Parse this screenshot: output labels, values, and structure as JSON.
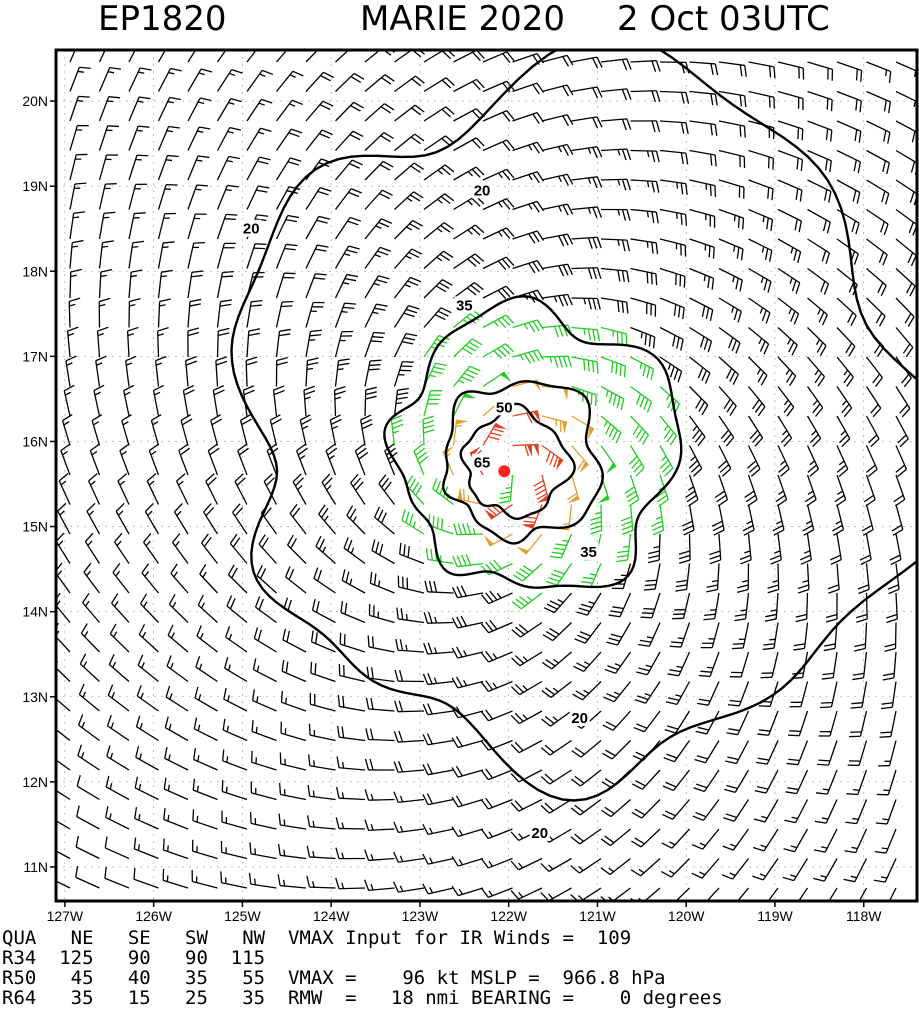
{
  "chart_data": {
    "type": "wind-barb-contour-map",
    "title": {
      "storm_id": "EP1820",
      "storm_name": "MARIE 2020",
      "valid_time": "2 Oct 03UTC"
    },
    "lon_range": [
      -127.1,
      -117.4
    ],
    "lat_range": [
      10.6,
      20.6
    ],
    "x_ticks": [
      {
        "value": -127,
        "label": "127W"
      },
      {
        "value": -126,
        "label": "126W"
      },
      {
        "value": -125,
        "label": "125W"
      },
      {
        "value": -124,
        "label": "124W"
      },
      {
        "value": -123,
        "label": "123W"
      },
      {
        "value": -122,
        "label": "122W"
      },
      {
        "value": -121,
        "label": "121W"
      },
      {
        "value": -120,
        "label": "120W"
      },
      {
        "value": -119,
        "label": "119W"
      },
      {
        "value": -118,
        "label": "118W"
      }
    ],
    "y_ticks": [
      {
        "value": 11,
        "label": "11N"
      },
      {
        "value": 12,
        "label": "12N"
      },
      {
        "value": 13,
        "label": "13N"
      },
      {
        "value": 14,
        "label": "14N"
      },
      {
        "value": 15,
        "label": "15N"
      },
      {
        "value": 16,
        "label": "16N"
      },
      {
        "value": 17,
        "label": "17N"
      },
      {
        "value": 18,
        "label": "18N"
      },
      {
        "value": 19,
        "label": "19N"
      },
      {
        "value": 20,
        "label": "20N"
      }
    ],
    "center": {
      "lon": -122.05,
      "lat": 15.65
    },
    "contour_levels": [
      20,
      35,
      50,
      65
    ],
    "contour_labels": [
      {
        "text": "20",
        "lon": -124.9,
        "lat": 18.5
      },
      {
        "text": "20",
        "lon": -122.3,
        "lat": 18.95
      },
      {
        "text": "20",
        "lon": -121.2,
        "lat": 12.75
      },
      {
        "text": "20",
        "lon": -121.65,
        "lat": 11.4
      },
      {
        "text": "35",
        "lon": -122.5,
        "lat": 17.6
      },
      {
        "text": "35",
        "lon": -121.1,
        "lat": 14.7
      },
      {
        "text": "50",
        "lon": -122.05,
        "lat": 16.4
      },
      {
        "text": "65",
        "lon": -122.3,
        "lat": 15.75
      }
    ],
    "wind_colors": {
      "below_34kt": "#000000",
      "34_to_49kt": "#22cc22",
      "50_to_63kt": "#e0a030",
      "64_plus_kt": "#e04020",
      "center_dot": "#ff2020"
    },
    "vmax_kt": 96,
    "rmw_nmi": 18
  },
  "info_table": {
    "rows": [
      "QUA   NE   SE   SW   NW  VMAX Input for IR Winds =  109",
      "R34  125   90   90  115",
      "R50   45   40   35   55  VMAX =    96 kt MSLP =  966.8 hPa",
      "R64   35   15   25   35  RMW  =   18 nmi BEARING =    0 degrees"
    ]
  }
}
